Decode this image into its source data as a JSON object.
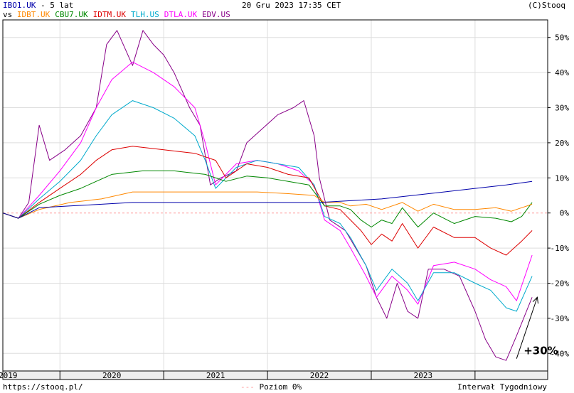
{
  "header": {
    "main_symbol": "IBO1.UK",
    "period": " - 5 lat",
    "vs_label": "vs",
    "date": "20 Gru 2023 17:35 CET",
    "copyright": "(C)Stooq"
  },
  "footer": {
    "url": "https://stooq.pl/",
    "baseline_legend": "Poziom 0%",
    "interval": "Interwał Tygodniowy"
  },
  "chart_data": {
    "type": "line",
    "y_axis": {
      "min": -45,
      "max": 55,
      "ticks": [
        50,
        40,
        30,
        20,
        10,
        0,
        -10,
        -20,
        -30,
        -40
      ],
      "tick_labels": [
        "50%",
        "40%",
        "30%",
        "20%",
        "10%",
        "0%",
        "-10%",
        "-20%",
        "-30%",
        "-40%"
      ],
      "position": "right"
    },
    "x_axis": {
      "min": 2018.95,
      "max": 2024.2,
      "year_boundaries": [
        2019.5,
        2020.5,
        2021.5,
        2022.5,
        2023.5
      ],
      "tick_labels": [
        "2019",
        "2020",
        "2021",
        "2022",
        "2023"
      ],
      "tick_label_positions": [
        2019,
        2020,
        2021,
        2022,
        2023
      ]
    },
    "grid": true,
    "baseline": 0,
    "annotation": {
      "text": "+30%",
      "arrow_from": [
        2023.9,
        -41.5
      ],
      "arrow_to": [
        2024.1,
        -24
      ]
    },
    "series": [
      {
        "name": "IBO1.UK",
        "color": "#0000aa",
        "points": [
          [
            2018.95,
            0
          ],
          [
            2019.1,
            -1.5
          ],
          [
            2019.3,
            1.5
          ],
          [
            2019.6,
            2
          ],
          [
            2019.9,
            2.5
          ],
          [
            2020.2,
            3
          ],
          [
            2020.5,
            3
          ],
          [
            2020.8,
            3
          ],
          [
            2021.1,
            3
          ],
          [
            2021.4,
            3
          ],
          [
            2021.7,
            3
          ],
          [
            2022.0,
            3
          ],
          [
            2022.3,
            3.5
          ],
          [
            2022.6,
            4
          ],
          [
            2022.9,
            5
          ],
          [
            2023.2,
            6
          ],
          [
            2023.5,
            7
          ],
          [
            2023.8,
            8
          ],
          [
            2024.05,
            9
          ]
        ]
      },
      {
        "name": "IDBT.UK",
        "color": "#ff8800",
        "points": [
          [
            2018.95,
            0
          ],
          [
            2019.1,
            -1.5
          ],
          [
            2019.3,
            1
          ],
          [
            2019.6,
            3
          ],
          [
            2019.9,
            4
          ],
          [
            2020.2,
            6
          ],
          [
            2020.5,
            6
          ],
          [
            2020.8,
            6
          ],
          [
            2021.1,
            6
          ],
          [
            2021.4,
            6
          ],
          [
            2021.7,
            5.5
          ],
          [
            2021.95,
            5
          ],
          [
            2022.05,
            3
          ],
          [
            2022.2,
            3
          ],
          [
            2022.3,
            2
          ],
          [
            2022.45,
            2.5
          ],
          [
            2022.6,
            1
          ],
          [
            2022.8,
            3
          ],
          [
            2022.95,
            0.5
          ],
          [
            2023.1,
            2.5
          ],
          [
            2023.3,
            1
          ],
          [
            2023.5,
            1
          ],
          [
            2023.7,
            1.5
          ],
          [
            2023.85,
            0.5
          ],
          [
            2024.05,
            2.5
          ]
        ]
      },
      {
        "name": "CBU7.UK",
        "color": "#008800",
        "points": [
          [
            2018.95,
            0
          ],
          [
            2019.1,
            -1.5
          ],
          [
            2019.3,
            2.5
          ],
          [
            2019.5,
            5
          ],
          [
            2019.7,
            7
          ],
          [
            2019.85,
            9
          ],
          [
            2020.0,
            11
          ],
          [
            2020.3,
            12
          ],
          [
            2020.6,
            12
          ],
          [
            2020.9,
            11
          ],
          [
            2021.1,
            9
          ],
          [
            2021.3,
            10.5
          ],
          [
            2021.5,
            10
          ],
          [
            2021.7,
            9
          ],
          [
            2021.9,
            8
          ],
          [
            2022.05,
            2
          ],
          [
            2022.2,
            2
          ],
          [
            2022.3,
            1
          ],
          [
            2022.4,
            -2
          ],
          [
            2022.5,
            -4
          ],
          [
            2022.6,
            -2
          ],
          [
            2022.7,
            -3
          ],
          [
            2022.8,
            1.5
          ],
          [
            2022.95,
            -4
          ],
          [
            2023.1,
            0
          ],
          [
            2023.3,
            -3
          ],
          [
            2023.5,
            -1
          ],
          [
            2023.7,
            -1.5
          ],
          [
            2023.85,
            -2.5
          ],
          [
            2023.95,
            -1
          ],
          [
            2024.05,
            3
          ]
        ]
      },
      {
        "name": "IDTM.UK",
        "color": "#dd0000",
        "points": [
          [
            2018.95,
            0
          ],
          [
            2019.1,
            -1.5
          ],
          [
            2019.3,
            3
          ],
          [
            2019.5,
            7
          ],
          [
            2019.7,
            11
          ],
          [
            2019.85,
            15
          ],
          [
            2020.0,
            18
          ],
          [
            2020.2,
            19
          ],
          [
            2020.5,
            18
          ],
          [
            2020.8,
            17
          ],
          [
            2021.0,
            15
          ],
          [
            2021.1,
            10
          ],
          [
            2021.3,
            14
          ],
          [
            2021.5,
            13
          ],
          [
            2021.7,
            11
          ],
          [
            2021.9,
            10
          ],
          [
            2022.05,
            2
          ],
          [
            2022.2,
            1
          ],
          [
            2022.3,
            -2
          ],
          [
            2022.4,
            -5
          ],
          [
            2022.5,
            -9
          ],
          [
            2022.6,
            -6
          ],
          [
            2022.7,
            -8
          ],
          [
            2022.8,
            -3
          ],
          [
            2022.95,
            -10
          ],
          [
            2023.1,
            -4
          ],
          [
            2023.3,
            -7
          ],
          [
            2023.5,
            -7
          ],
          [
            2023.65,
            -10
          ],
          [
            2023.8,
            -12
          ],
          [
            2023.95,
            -8
          ],
          [
            2024.05,
            -5
          ]
        ]
      },
      {
        "name": "TLH.US",
        "color": "#00aacc",
        "points": [
          [
            2018.95,
            0
          ],
          [
            2019.1,
            -1.5
          ],
          [
            2019.3,
            4
          ],
          [
            2019.5,
            9
          ],
          [
            2019.7,
            15
          ],
          [
            2019.85,
            22
          ],
          [
            2020.0,
            28
          ],
          [
            2020.2,
            32
          ],
          [
            2020.4,
            30
          ],
          [
            2020.6,
            27
          ],
          [
            2020.8,
            22
          ],
          [
            2020.9,
            15
          ],
          [
            2021.0,
            7
          ],
          [
            2021.2,
            13
          ],
          [
            2021.4,
            15
          ],
          [
            2021.6,
            14
          ],
          [
            2021.8,
            13
          ],
          [
            2021.95,
            8
          ],
          [
            2022.05,
            -1
          ],
          [
            2022.2,
            -3
          ],
          [
            2022.3,
            -7
          ],
          [
            2022.45,
            -15
          ],
          [
            2022.55,
            -22
          ],
          [
            2022.7,
            -16
          ],
          [
            2022.85,
            -20
          ],
          [
            2022.95,
            -25
          ],
          [
            2023.1,
            -17
          ],
          [
            2023.3,
            -17
          ],
          [
            2023.5,
            -20
          ],
          [
            2023.65,
            -22
          ],
          [
            2023.8,
            -27
          ],
          [
            2023.9,
            -28
          ],
          [
            2024.05,
            -18
          ]
        ]
      },
      {
        "name": "DTLA.UK",
        "color": "#ff00ff",
        "points": [
          [
            2018.95,
            0
          ],
          [
            2019.1,
            -1.5
          ],
          [
            2019.3,
            5
          ],
          [
            2019.5,
            12
          ],
          [
            2019.7,
            20
          ],
          [
            2019.85,
            30
          ],
          [
            2020.0,
            38
          ],
          [
            2020.2,
            43
          ],
          [
            2020.4,
            40
          ],
          [
            2020.6,
            36
          ],
          [
            2020.8,
            30
          ],
          [
            2020.9,
            20
          ],
          [
            2021.0,
            8
          ],
          [
            2021.2,
            14
          ],
          [
            2021.4,
            15
          ],
          [
            2021.6,
            14
          ],
          [
            2021.8,
            12
          ],
          [
            2021.95,
            8
          ],
          [
            2022.05,
            -2
          ],
          [
            2022.2,
            -5
          ],
          [
            2022.3,
            -10
          ],
          [
            2022.45,
            -18
          ],
          [
            2022.55,
            -24
          ],
          [
            2022.7,
            -18
          ],
          [
            2022.85,
            -22
          ],
          [
            2022.95,
            -26
          ],
          [
            2023.1,
            -15
          ],
          [
            2023.3,
            -14
          ],
          [
            2023.5,
            -16
          ],
          [
            2023.65,
            -19
          ],
          [
            2023.8,
            -21
          ],
          [
            2023.9,
            -25
          ],
          [
            2024.05,
            -12
          ]
        ]
      },
      {
        "name": "EDV.US",
        "color": "#880088",
        "points": [
          [
            2018.95,
            0
          ],
          [
            2019.1,
            -1.5
          ],
          [
            2019.2,
            3
          ],
          [
            2019.3,
            25
          ],
          [
            2019.4,
            15
          ],
          [
            2019.55,
            18
          ],
          [
            2019.7,
            22
          ],
          [
            2019.85,
            30
          ],
          [
            2019.95,
            48
          ],
          [
            2020.05,
            52
          ],
          [
            2020.2,
            42
          ],
          [
            2020.3,
            52
          ],
          [
            2020.4,
            48
          ],
          [
            2020.5,
            45
          ],
          [
            2020.6,
            40
          ],
          [
            2020.75,
            30
          ],
          [
            2020.85,
            25
          ],
          [
            2020.95,
            8
          ],
          [
            2021.05,
            10
          ],
          [
            2021.2,
            12
          ],
          [
            2021.3,
            20
          ],
          [
            2021.45,
            24
          ],
          [
            2021.6,
            28
          ],
          [
            2021.75,
            30
          ],
          [
            2021.85,
            32
          ],
          [
            2021.95,
            22
          ],
          [
            2022.0,
            10
          ],
          [
            2022.1,
            -2
          ],
          [
            2022.25,
            -5
          ],
          [
            2022.35,
            -10
          ],
          [
            2022.45,
            -15
          ],
          [
            2022.55,
            -24
          ],
          [
            2022.65,
            -30
          ],
          [
            2022.75,
            -20
          ],
          [
            2022.85,
            -28
          ],
          [
            2022.95,
            -30
          ],
          [
            2023.05,
            -16
          ],
          [
            2023.2,
            -16
          ],
          [
            2023.35,
            -18
          ],
          [
            2023.5,
            -28
          ],
          [
            2023.6,
            -36
          ],
          [
            2023.7,
            -41
          ],
          [
            2023.8,
            -42
          ],
          [
            2023.9,
            -35
          ],
          [
            2024.05,
            -24
          ]
        ]
      }
    ]
  }
}
